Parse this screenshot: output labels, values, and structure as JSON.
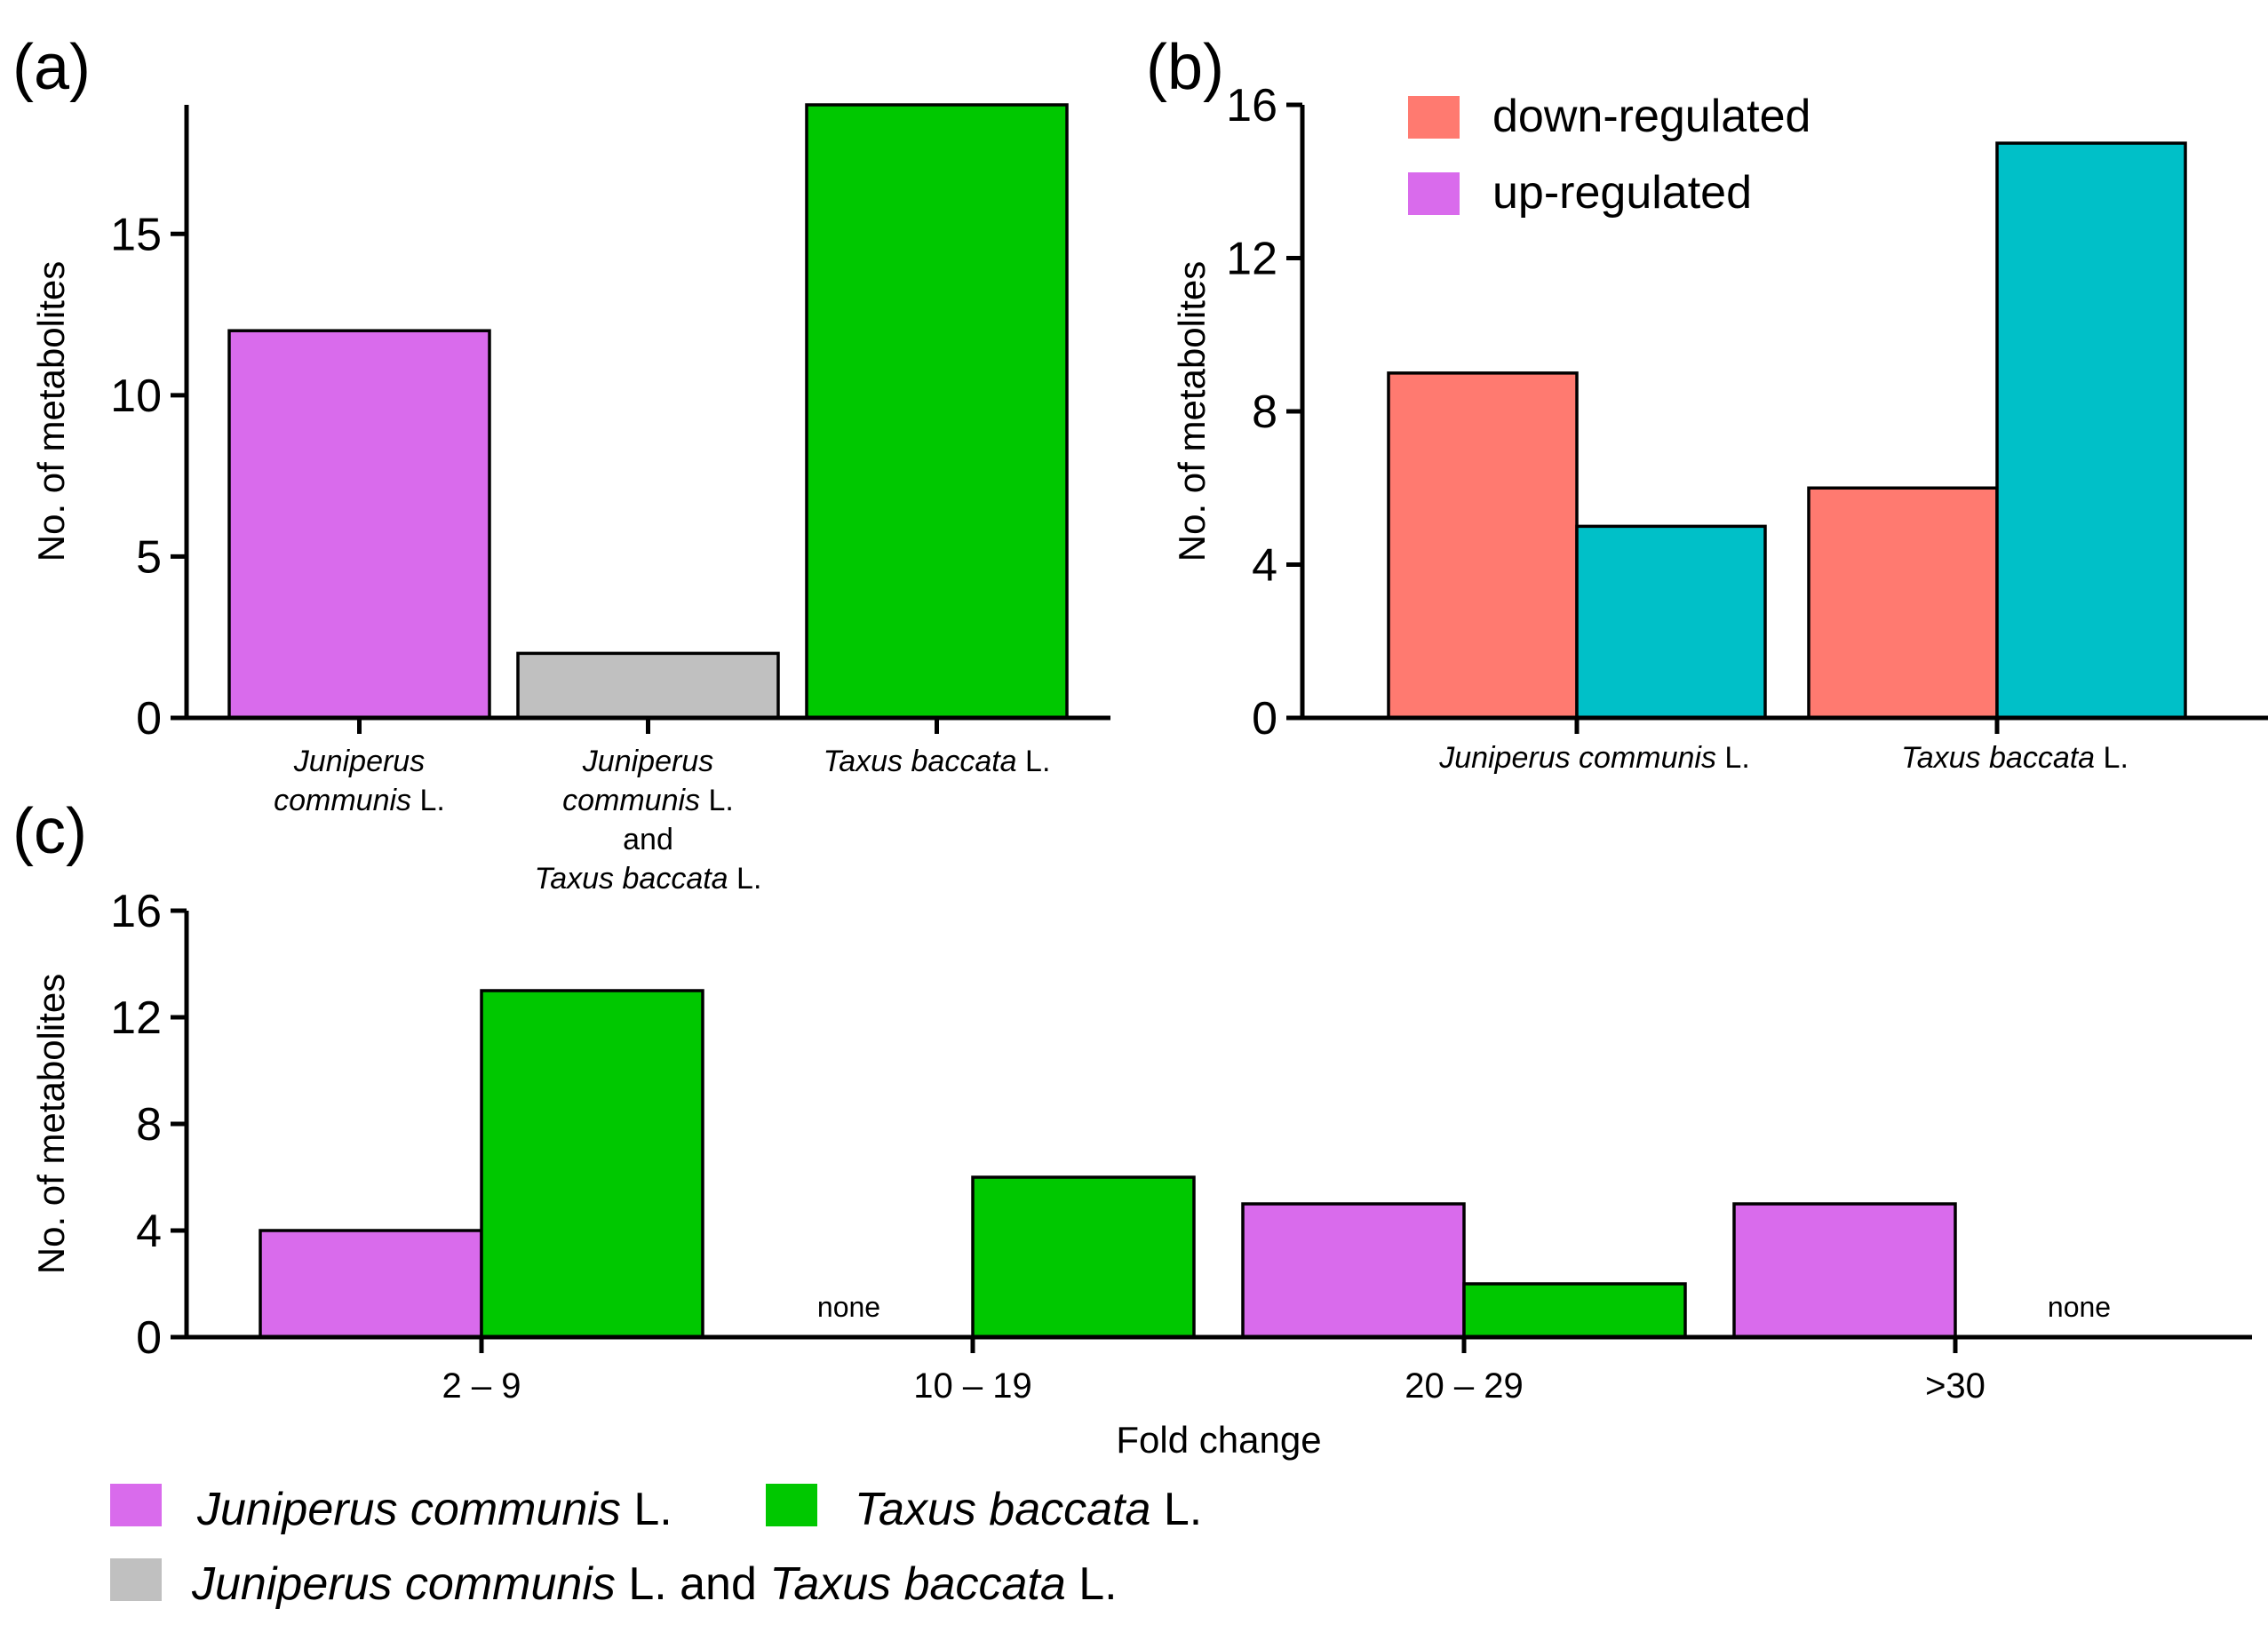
{
  "panel_labels": {
    "a": "(a)",
    "b": "(b)",
    "c": "(c)"
  },
  "colors": {
    "juniperus": "#d96bec",
    "taxus": "#00c800",
    "both": "#c0c0c0",
    "down": "#ff7a70",
    "up": "#00c0c8"
  },
  "legend_main": [
    {
      "key": "juniperus",
      "italic": "Juniperus communis",
      "suffix": " L."
    },
    {
      "key": "taxus",
      "italic": "Taxus baccata",
      "suffix": " L."
    },
    {
      "key": "both",
      "parts": [
        {
          "text": "Juniperus communis",
          "italic": true
        },
        {
          "text": " L. and ",
          "italic": false
        },
        {
          "text": "Taxus baccata",
          "italic": true
        },
        {
          "text": " L.",
          "italic": false
        }
      ]
    }
  ],
  "chart_data": [
    {
      "id": "a",
      "type": "bar",
      "ylabel": "No. of metabolites",
      "ylim": [
        0,
        19
      ],
      "yticks": [
        0,
        5,
        10,
        15
      ],
      "categories": [
        {
          "lines": [
            [
              {
                "text": "Juniperus",
                "italic": true
              }
            ],
            [
              {
                "text": "communis",
                "italic": true
              },
              {
                "text": " L.",
                "italic": false
              }
            ]
          ]
        },
        {
          "lines": [
            [
              {
                "text": "Juniperus",
                "italic": true
              }
            ],
            [
              {
                "text": "communis",
                "italic": true
              },
              {
                "text": " L.",
                "italic": false
              }
            ],
            [
              {
                "text": "and",
                "italic": false
              }
            ],
            [
              {
                "text": "Taxus baccata",
                "italic": true
              },
              {
                "text": " L.",
                "italic": false
              }
            ]
          ]
        },
        {
          "lines": [
            [
              {
                "text": "Taxus baccata",
                "italic": true
              },
              {
                "text": " L.",
                "italic": false
              }
            ]
          ]
        }
      ],
      "values": [
        12,
        2,
        19
      ],
      "bar_colors": [
        "juniperus",
        "both",
        "taxus"
      ]
    },
    {
      "id": "b",
      "type": "bar",
      "ylabel": "No. of metabolites",
      "ylim": [
        0,
        16
      ],
      "yticks": [
        0,
        4,
        8,
        12,
        16
      ],
      "categories": [
        {
          "lines": [
            [
              {
                "text": "Juniperus communis",
                "italic": true
              },
              {
                "text": " L.",
                "italic": false
              }
            ]
          ]
        },
        {
          "lines": [
            [
              {
                "text": "Taxus baccata",
                "italic": true
              },
              {
                "text": " L.",
                "italic": false
              }
            ]
          ]
        }
      ],
      "series": [
        {
          "name": "down-regulated",
          "color": "down",
          "values": [
            9,
            6
          ]
        },
        {
          "name": "up-regulated",
          "color": "up",
          "values": [
            5,
            15
          ]
        }
      ],
      "legend_placement": "top-left",
      "legend_swatches": [
        "down",
        "juniperus"
      ]
    },
    {
      "id": "c",
      "type": "bar",
      "ylabel": "No. of metabolites",
      "xlabel": "Fold change",
      "ylim": [
        0,
        16
      ],
      "yticks": [
        0,
        4,
        8,
        12,
        16
      ],
      "categories": [
        "2 – 9",
        "10 – 19",
        "20 – 29",
        ">30"
      ],
      "series": [
        {
          "name": "Juniperus communis L.",
          "color": "juniperus",
          "values": [
            4,
            0,
            5,
            5
          ]
        },
        {
          "name": "Taxus baccata L.",
          "color": "taxus",
          "values": [
            13,
            6,
            2,
            0
          ]
        }
      ],
      "annotations": [
        {
          "text": "none",
          "category": 1,
          "series": 0
        },
        {
          "text": "none",
          "category": 3,
          "series": 1
        }
      ]
    }
  ]
}
